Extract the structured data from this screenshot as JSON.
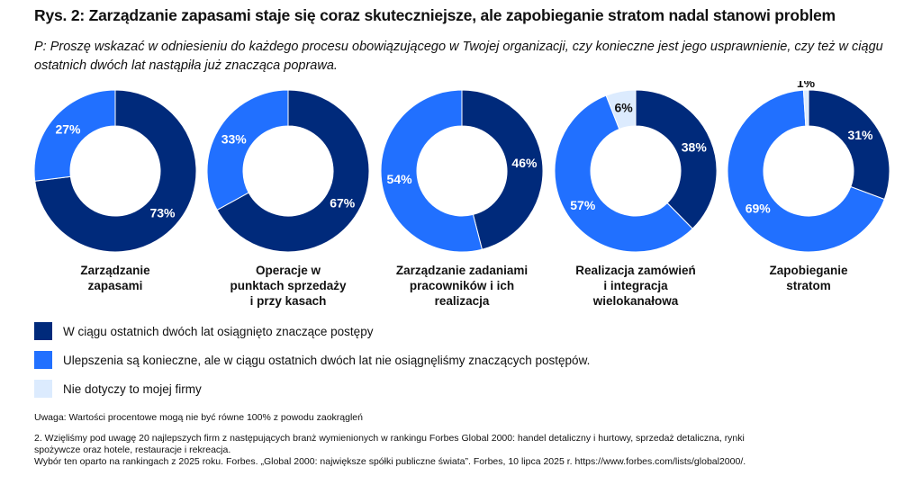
{
  "title": "Rys. 2: Zarządzanie zapasami staje się coraz skuteczniejsze, ale zapobieganie stratom nadal stanowi problem",
  "question": "P: Proszę wskazać w odniesieniu do każdego procesu obowiązującego w Twojej organizacji, czy konieczne jest jego usprawnienie, czy też w ciągu ostatnich dwóch lat nastąpiła już znacząca poprawa.",
  "chart_data": {
    "type": "pie",
    "series_names": [
      "W ciągu ostatnich dwóch lat osiągnięto znaczące postępy",
      "Ulepszenia są konieczne, ale w ciągu ostatnich dwóch lat nie osiągnęliśmy znaczących postępów.",
      "Nie dotyczy to mojej firmy"
    ],
    "colors": [
      "#002a7b",
      "#2170ff",
      "#dcebfe"
    ],
    "categories": [
      "Zarządzanie zapasami",
      "Operacje w punktach sprzedaży i przy kasach",
      "Zarządzanie zadaniami pracowników i ich realizacja",
      "Realizacja zamówień i integracja wielokanałowa",
      "Zapobieganie stratom"
    ],
    "category_lines": [
      [
        "Zarządzanie",
        "zapasami"
      ],
      [
        "Operacje w",
        "punktach sprzedaży",
        "i przy kasach"
      ],
      [
        "Zarządzanie zadaniami",
        "pracowników i ich",
        "realizacja"
      ],
      [
        "Realizacja zamówień",
        "i integracja",
        "wielokanałowa"
      ],
      [
        "Zapobieganie",
        "stratom"
      ]
    ],
    "values": [
      [
        73,
        27,
        0
      ],
      [
        67,
        33,
        0
      ],
      [
        46,
        54,
        0
      ],
      [
        38,
        57,
        6
      ],
      [
        31,
        69,
        1
      ]
    ],
    "unit": "%",
    "legend": "bottom-left"
  },
  "legend": [
    "W ciągu ostatnich dwóch lat osiągnięto znaczące postępy",
    "Ulepszenia są konieczne, ale w ciągu ostatnich dwóch lat nie osiągnęliśmy znaczących postępów.",
    "Nie dotyczy to mojej firmy"
  ],
  "notes": {
    "uwaga": "Uwaga: Wartości procentowe mogą nie być równe 100% z powodu zaokrągleń",
    "n2a": "2. Wzięliśmy pod uwagę 20 najlepszych firm z następujących branż wymienionych w rankingu Forbes Global 2000: handel detaliczny i hurtowy, sprzedaż detaliczna, rynki",
    "n2b": "spożywcze oraz hotele, restauracje i rekreacja.",
    "n2c": "Wybór ten oparto na rankingach z 2025 roku. Forbes. „Global 2000: największe spółki publiczne świata”. Forbes, 10 lipca 2025 r. https://www.forbes.com/lists/global2000/."
  }
}
